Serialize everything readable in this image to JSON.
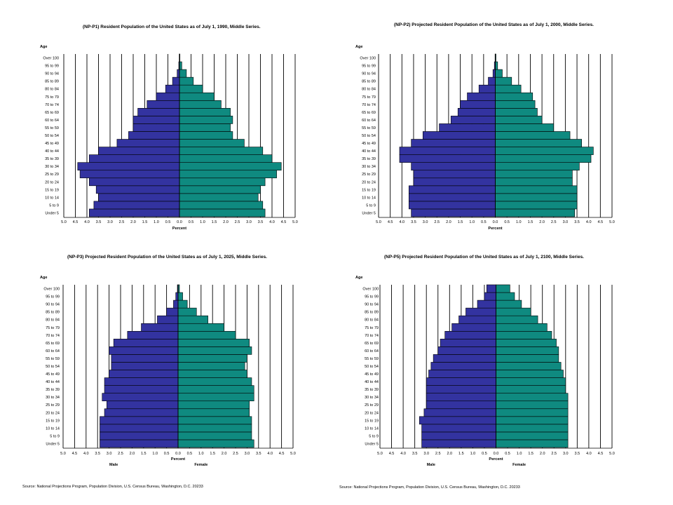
{
  "source_text": "Source:  National Projections Program, Population Division, U.S. Census Bureau, Washington, D.C. 20233",
  "colors": {
    "male": "#3333a0",
    "female": "#0f8a80",
    "grid": "#000000"
  },
  "chart_data": [
    {
      "type": "bar",
      "orientation": "horizontal-pyramid",
      "title": "(NP-P1)  Resident Population of the United States as of July 1, 1990, Middle Series.",
      "ylabel": "Age",
      "xlabel": "Percent",
      "male_label": "",
      "female_label": "",
      "xlim": [
        -5,
        5
      ],
      "xticks": [
        "5.0",
        "4.5",
        "4.0",
        "3.5",
        "3.0",
        "2.5",
        "2.0",
        "1.5",
        "1.0",
        "0.5",
        "0.0",
        "0.5",
        "1.0",
        "1.5",
        "2.0",
        "2.5",
        "3.0",
        "3.5",
        "4.0",
        "4.5",
        "5.0"
      ],
      "categories": [
        "Under 5",
        "5 to 9",
        "10 to 14",
        "15 to 19",
        "20 to 24",
        "25 to 29",
        "30 to 34",
        "35 to 39",
        "40 to 44",
        "45 to 49",
        "50 to 54",
        "55 to 59",
        "60 to 64",
        "65 to 69",
        "70 to 74",
        "75 to 79",
        "80 to 84",
        "85 to 89",
        "90 to 94",
        "95 to 99",
        "Over 100"
      ],
      "series": [
        {
          "name": "Male",
          "values": [
            3.9,
            3.7,
            3.5,
            3.6,
            3.9,
            4.3,
            4.4,
            3.9,
            3.5,
            2.7,
            2.2,
            2.0,
            2.0,
            1.8,
            1.4,
            1.0,
            0.6,
            0.3,
            0.1,
            0.03,
            0.01
          ]
        },
        {
          "name": "Female",
          "values": [
            3.7,
            3.6,
            3.4,
            3.5,
            3.7,
            4.2,
            4.4,
            4.0,
            3.6,
            2.8,
            2.3,
            2.2,
            2.3,
            2.2,
            1.8,
            1.5,
            1.0,
            0.6,
            0.3,
            0.1,
            0.02
          ]
        }
      ]
    },
    {
      "type": "bar",
      "orientation": "horizontal-pyramid",
      "title": "(NP-P2)  Projected Resident Population of the United States as of July 1, 2000, Middle Series.",
      "ylabel": "Age",
      "xlabel": "Percent",
      "male_label": "",
      "female_label": "",
      "xlim": [
        -5,
        5
      ],
      "xticks": [
        "5.0",
        "4.5",
        "4.0",
        "3.5",
        "3.0",
        "2.5",
        "2.0",
        "1.5",
        "1.0",
        "0.5",
        "0.0",
        "0.5",
        "1.0",
        "1.5",
        "2.0",
        "2.5",
        "3.0",
        "3.5",
        "4.0",
        "4.5",
        "5.0"
      ],
      "categories": [
        "Under 5",
        "5 to 9",
        "10 to 14",
        "15 to 19",
        "20 to 24",
        "25 to 29",
        "30 to 34",
        "35 to 39",
        "40 to 44",
        "45 to 49",
        "50 to 54",
        "55 to 59",
        "60 to 64",
        "65 to 69",
        "70 to 74",
        "75 to 79",
        "80 to 84",
        "85 to 89",
        "90 to 94",
        "95 to 99",
        "Over 100"
      ],
      "series": [
        {
          "name": "Male",
          "values": [
            3.6,
            3.7,
            3.7,
            3.7,
            3.5,
            3.5,
            3.6,
            4.1,
            4.1,
            3.6,
            3.1,
            2.4,
            1.9,
            1.6,
            1.5,
            1.2,
            0.7,
            0.3,
            0.1,
            0.04,
            0.01
          ]
        },
        {
          "name": "Female",
          "values": [
            3.4,
            3.5,
            3.5,
            3.5,
            3.3,
            3.3,
            3.6,
            4.1,
            4.2,
            3.7,
            3.2,
            2.5,
            2.0,
            1.8,
            1.7,
            1.6,
            1.1,
            0.7,
            0.3,
            0.1,
            0.03
          ]
        }
      ]
    },
    {
      "type": "bar",
      "orientation": "horizontal-pyramid",
      "title": "(NP-P3)  Projected Resident Population of the United States as of July 1, 2025, Middle Series.",
      "ylabel": "Age",
      "xlabel": "Percent",
      "male_label": "Male",
      "female_label": "Female",
      "xlim": [
        -5,
        5
      ],
      "xticks": [
        "5.0",
        "4.5",
        "4.0",
        "3.5",
        "3.0",
        "2.5",
        "2.0",
        "1.5",
        "1.0",
        "0.5",
        "0.0",
        "0.5",
        "1.0",
        "1.5",
        "2.0",
        "2.5",
        "3.0",
        "3.5",
        "4.0",
        "4.5",
        "5.0"
      ],
      "categories": [
        "Under 5",
        "5 to 9",
        "10 to 14",
        "15 to 19",
        "20 to 24",
        "25 to 29",
        "30 to 34",
        "35 to 39",
        "40 to 44",
        "45 to 49",
        "50 to 54",
        "55 to 59",
        "60 to 64",
        "65 to 69",
        "70 to 74",
        "75 to 79",
        "80 to 84",
        "85 to 89",
        "90 to 94",
        "95 to 99",
        "Over 100"
      ],
      "series": [
        {
          "name": "Male",
          "values": [
            3.4,
            3.4,
            3.4,
            3.4,
            3.2,
            3.1,
            3.3,
            3.2,
            3.2,
            3.0,
            2.9,
            2.9,
            3.0,
            2.8,
            2.2,
            1.6,
            0.9,
            0.5,
            0.2,
            0.1,
            0.03
          ]
        },
        {
          "name": "Female",
          "values": [
            3.3,
            3.2,
            3.2,
            3.2,
            3.1,
            3.1,
            3.3,
            3.3,
            3.2,
            3.0,
            2.9,
            3.0,
            3.2,
            3.1,
            2.5,
            2.0,
            1.3,
            0.8,
            0.4,
            0.2,
            0.06
          ]
        }
      ]
    },
    {
      "type": "bar",
      "orientation": "horizontal-pyramid",
      "title": "(NP-P5)  Projected Resident Population of the United States as of July 1, 2100, Middle Series.",
      "ylabel": "Age",
      "xlabel": "Percent",
      "male_label": "Male",
      "female_label": "Female",
      "xlim": [
        -5,
        5
      ],
      "xticks": [
        "5.0",
        "4.5",
        "4.0",
        "3.5",
        "3.0",
        "2.5",
        "2.0",
        "1.5",
        "1.0",
        "0.5",
        "0.0",
        "0.5",
        "1.0",
        "1.5",
        "2.0",
        "2.5",
        "3.0",
        "3.5",
        "4.0",
        "4.5",
        "5.0"
      ],
      "categories": [
        "Under 5",
        "5 to 9",
        "10 to 14",
        "15 to 19",
        "20 to 24",
        "25 to 29",
        "30 to 34",
        "35 to 39",
        "40 to 44",
        "45 to 49",
        "50 to 54",
        "55 to 59",
        "60 to 64",
        "65 to 69",
        "70 to 74",
        "75 to 79",
        "80 to 84",
        "85 to 89",
        "90 to 94",
        "95 to 99",
        "Over 100"
      ],
      "series": [
        {
          "name": "Male",
          "values": [
            3.2,
            3.2,
            3.2,
            3.3,
            3.1,
            3.0,
            3.0,
            3.0,
            3.0,
            2.9,
            2.8,
            2.7,
            2.5,
            2.4,
            2.2,
            1.9,
            1.6,
            1.3,
            0.8,
            0.5,
            0.4
          ]
        },
        {
          "name": "Female",
          "values": [
            3.1,
            3.1,
            3.1,
            3.1,
            3.1,
            3.1,
            3.1,
            3.0,
            3.0,
            2.9,
            2.8,
            2.7,
            2.7,
            2.6,
            2.4,
            2.2,
            1.8,
            1.5,
            1.1,
            0.8,
            0.6
          ]
        }
      ]
    }
  ]
}
